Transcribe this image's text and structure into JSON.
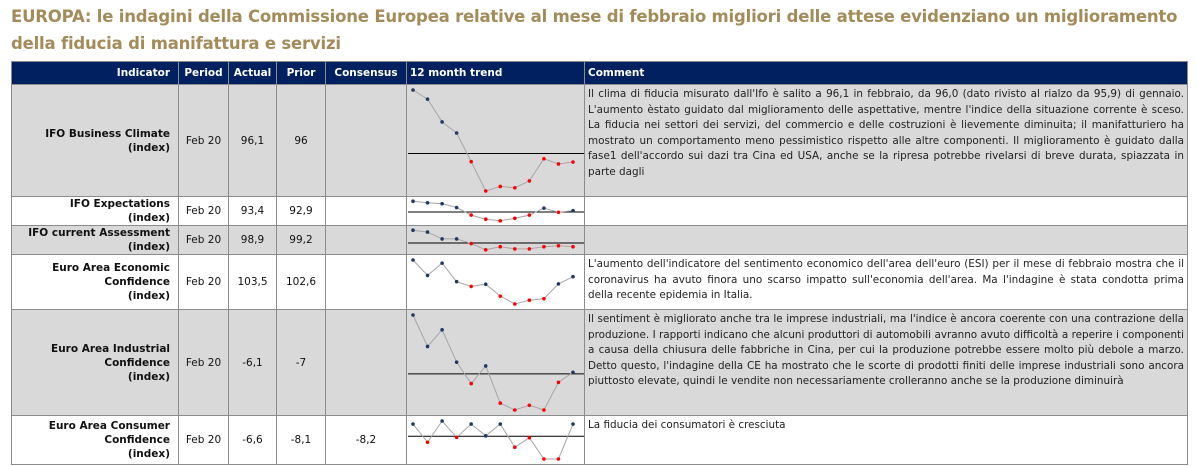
{
  "title": "EUROPA: le indagini della Commissione Europea relative al mese di febbraio migliori delle attese evidenziano un miglioramento della fiducia di manifattura e servizi",
  "colors": {
    "header_bg": "#002060",
    "title": "#a38b5a",
    "row_alt": "#d9d9d9",
    "up_marker": "#1f3864",
    "down_marker": "#ff0000",
    "trend_line": "#a6a6a6"
  },
  "headers": {
    "indicator": "Indicator",
    "period": "Period",
    "actual": "Actual",
    "prior": "Prior",
    "consensus": "Consensus",
    "trend": "12 month trend",
    "comment": "Comment"
  },
  "rows": [
    {
      "indicator": "IFO Business Climate",
      "unit": "(index)",
      "period": "Feb 20",
      "actual": "96,1",
      "prior": "96",
      "consensus": "",
      "trend": {
        "values": [
          335,
          307,
          237,
          203,
          115,
          25,
          39,
          35,
          56,
          124,
          108,
          114
        ],
        "reference": 140,
        "red": [
          0,
          0,
          0,
          0,
          1,
          1,
          1,
          1,
          1,
          1,
          1,
          1
        ]
      },
      "comment": "Il clima di fiducia misurato dall'Ifo è salito a 96,1 in febbraio, da 96,0 (dato rivisto al rialzo da 95,9) di gennaio. L'aumento èstato guidato dal miglioramento delle aspettative, mentre l'indice della situazione corrente è sceso. La fiducia nei settori dei servizi, del commercio e delle costruzioni è lievemente diminuita; il manifatturiero ha mostrato un comportamento meno pessimistico rispetto alle altre componenti.  Il miglioramento è guidato dalla fase1 dell'accordo sui dazi tra Cina ed USA, anche se la ripresa potrebbe rivelarsi di breve durata, spiazzata in parte dagli"
    },
    {
      "indicator": "IFO Expectations",
      "unit": "(index)",
      "period": "Feb 20",
      "actual": "93,4",
      "prior": "92,9",
      "consensus": "",
      "trend": {
        "values": [
          80,
          75,
          72,
          60,
          36,
          23,
          18,
          26,
          36,
          58,
          45,
          50
        ],
        "reference": 46,
        "red": [
          0,
          0,
          0,
          0,
          1,
          1,
          1,
          1,
          1,
          0,
          1,
          0
        ]
      },
      "comment": ""
    },
    {
      "indicator": "IFO current Assessment",
      "unit": "(index)",
      "period": "Feb 20",
      "actual": "98,9",
      "prior": "99,2",
      "consensus": "",
      "trend": {
        "values": [
          77,
          71,
          49,
          49,
          34,
          14,
          24,
          17,
          17,
          24,
          27,
          24
        ],
        "reference": 36,
        "red": [
          0,
          0,
          0,
          0,
          1,
          1,
          1,
          1,
          1,
          1,
          1,
          1
        ]
      },
      "comment": ""
    },
    {
      "indicator": "Euro Area Economic Confidence",
      "unit": "(index)",
      "period": "Feb 20",
      "actual": "103,5",
      "prior": "102,6",
      "consensus": "",
      "trend": {
        "values": [
          152,
          103,
          142,
          83,
          68,
          75,
          37,
          12,
          24,
          29,
          76,
          99
        ],
        "reference": null,
        "red": [
          0,
          0,
          0,
          0,
          1,
          0,
          1,
          1,
          1,
          1,
          0,
          0
        ]
      },
      "comment": "L'aumento dell'indicatore del sentimento economico dell'area dell'euro (ESI) per il mese di febbraio mostra che il coronavirus ha avuto finora uno scarso impatto sull'economia dell'area. Ma l'indagine è stata condotta prima della recente epidemia in Italia."
    },
    {
      "indicator": "Euro Area  Industrial Confidence",
      "unit": "(index)",
      "period": "Feb 20",
      "actual": "-6,1",
      "prior": "-7",
      "consensus": "",
      "trend": {
        "values": [
          320,
          220,
          273,
          170,
          102,
          158,
          40,
          18,
          33,
          18,
          106,
          138
        ],
        "reference": 133,
        "red": [
          0,
          0,
          0,
          0,
          1,
          0,
          1,
          1,
          1,
          1,
          1,
          0
        ]
      },
      "comment": "Il sentiment è migliorato anche tra le imprese industriali, ma l'indice è ancora coerente con una contrazione della produzione. I rapporti indicano che alcuni produttori di automobili avranno avuto difficoltà a reperire i componenti a causa della chiusura delle fabbriche in Cina, per cui la produzione potrebbe essere molto più debole a marzo. Detto questo, l'indagine della CE ha mostrato che le scorte di prodotti finiti delle imprese industriali sono ancora piuttosto elevate, quindi le vendite non necessariamente crolleranno anche se la produzione diminuirà"
    },
    {
      "indicator": "Euro Area Consumer Confidence",
      "unit": "(index)",
      "period": "Feb 20",
      "actual": "-6,6",
      "prior": "-8,1",
      "consensus": "-8,2",
      "trend": {
        "values": [
          105,
          57,
          113,
          70,
          105,
          74,
          105,
          44,
          69,
          13,
          13,
          105
        ],
        "reference": 73,
        "red": [
          0,
          1,
          0,
          1,
          0,
          0,
          0,
          1,
          1,
          1,
          1,
          0
        ]
      },
      "comment": "La fiducia dei consumatori è cresciuta"
    }
  ]
}
